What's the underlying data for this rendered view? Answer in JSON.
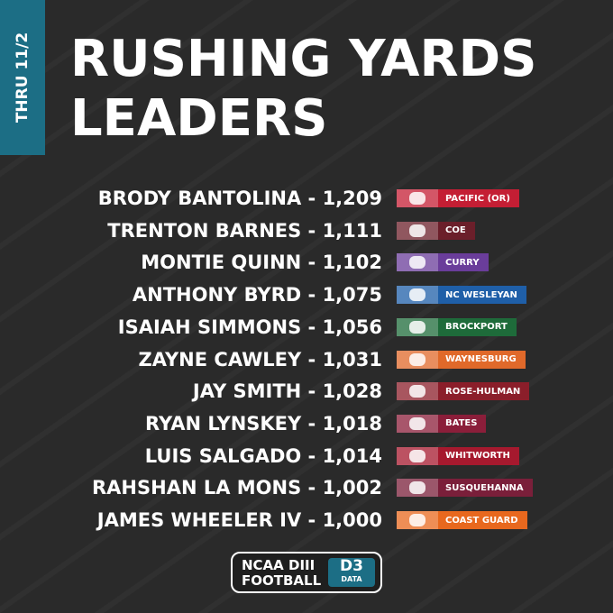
{
  "tab": "THRU 11/2",
  "title": [
    "RUSHING YARDS",
    "LEADERS"
  ],
  "rows": [
    {
      "line": "BRODY BANTOLINA - 1,209",
      "school": "PACIFIC (OR)",
      "color": "#c41e34"
    },
    {
      "line": "TRENTON BARNES - 1,111",
      "school": "COE",
      "color": "#6b1f2a"
    },
    {
      "line": "MONTIE QUINN - 1,102",
      "school": "CURRY",
      "color": "#6a3d9a"
    },
    {
      "line": "ANTHONY BYRD - 1,075",
      "school": "NC WESLEYAN",
      "color": "#1f5fa8"
    },
    {
      "line": "ISAIAH SIMMONS - 1,056",
      "school": "BROCKPORT",
      "color": "#1e6b3a"
    },
    {
      "line": "ZAYNE CAWLEY - 1,031",
      "school": "WAYNESBURG",
      "color": "#e0692a"
    },
    {
      "line": "JAY SMITH - 1,028",
      "school": "ROSE-HULMAN",
      "color": "#8b1e2a"
    },
    {
      "line": "RYAN LYNSKEY - 1,018",
      "school": "BATES",
      "color": "#8b1e3a"
    },
    {
      "line": "LUIS SALGADO - 1,014",
      "school": "WHITWORTH",
      "color": "#a6192e"
    },
    {
      "line": "RAHSHAN LA MONS - 1,002",
      "school": "SUSQUEHANNA",
      "color": "#7a1f3a"
    },
    {
      "line": "JAMES WHEELER IV - 1,000",
      "school": "COAST GUARD",
      "color": "#e8681e"
    }
  ],
  "footer": {
    "logo": [
      "NCAA DIII",
      "FOOTBALL"
    ],
    "badge": [
      "D3",
      "DATA"
    ]
  }
}
